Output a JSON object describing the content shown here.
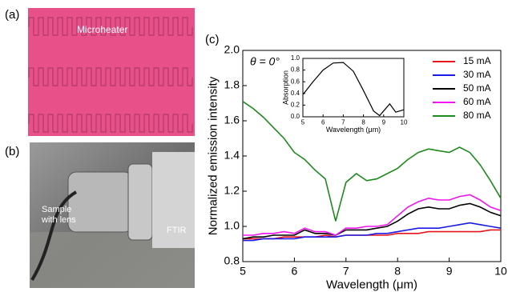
{
  "panels": {
    "a": {
      "label": "(a)",
      "text": "Microheater"
    },
    "b": {
      "label": "(b)",
      "texts": [
        "Sample",
        "with lens",
        "FTIR"
      ]
    },
    "c": {
      "label": "(c)"
    }
  },
  "chart_data": [
    {
      "type": "line",
      "xlabel": "Wavelength (μm)",
      "ylabel": "Normalized emission intensity",
      "annotation": "θ = 0°",
      "x": [
        5,
        5.2,
        5.4,
        5.6,
        5.8,
        6,
        6.2,
        6.4,
        6.6,
        6.8,
        7,
        7.2,
        7.4,
        7.6,
        7.8,
        8,
        8.2,
        8.4,
        8.6,
        8.8,
        9,
        9.2,
        9.4,
        9.6,
        9.8,
        10
      ],
      "series": [
        {
          "name": "15 mA",
          "color": "#e8141c",
          "values": [
            0.93,
            0.93,
            0.93,
            0.93,
            0.94,
            0.94,
            0.94,
            0.94,
            0.95,
            0.94,
            0.95,
            0.95,
            0.95,
            0.95,
            0.95,
            0.96,
            0.96,
            0.96,
            0.97,
            0.97,
            0.97,
            0.97,
            0.97,
            0.97,
            0.98,
            0.98
          ]
        },
        {
          "name": "30 mA",
          "color": "#1a1ae6",
          "values": [
            0.92,
            0.92,
            0.93,
            0.93,
            0.93,
            0.93,
            0.94,
            0.94,
            0.94,
            0.94,
            0.95,
            0.95,
            0.95,
            0.96,
            0.96,
            0.97,
            0.98,
            0.99,
            0.99,
            0.99,
            1.0,
            1.01,
            1.02,
            1.01,
            1.0,
            0.99
          ]
        },
        {
          "name": "50 mA",
          "color": "#000000",
          "values": [
            0.93,
            0.94,
            0.94,
            0.95,
            0.95,
            0.95,
            0.98,
            0.96,
            0.96,
            0.95,
            0.98,
            0.98,
            0.98,
            0.99,
            1.0,
            1.03,
            1.07,
            1.1,
            1.11,
            1.1,
            1.1,
            1.12,
            1.13,
            1.11,
            1.08,
            1.06
          ]
        },
        {
          "name": "60 mA",
          "color": "#f014f0",
          "values": [
            0.95,
            0.95,
            0.96,
            0.96,
            0.97,
            0.96,
            0.99,
            0.97,
            0.97,
            0.95,
            0.99,
            0.99,
            1.0,
            1.0,
            1.01,
            1.06,
            1.11,
            1.14,
            1.16,
            1.15,
            1.15,
            1.17,
            1.18,
            1.15,
            1.11,
            1.09
          ]
        },
        {
          "name": "80 mA",
          "color": "#1e8a1e",
          "values": [
            1.71,
            1.67,
            1.62,
            1.56,
            1.5,
            1.42,
            1.38,
            1.32,
            1.27,
            1.03,
            1.25,
            1.3,
            1.26,
            1.27,
            1.3,
            1.33,
            1.38,
            1.42,
            1.44,
            1.43,
            1.42,
            1.45,
            1.42,
            1.35,
            1.26,
            1.16
          ]
        }
      ],
      "xlim": [
        5,
        10
      ],
      "xticks": [
        5,
        6,
        7,
        8,
        9,
        10
      ],
      "ylim": [
        0.8,
        2.0
      ],
      "yticks": [
        0.8,
        {
          "value": 1,
          "label": "1.0"
        },
        1.2,
        1.4,
        1.6,
        1.8,
        {
          "value": 2,
          "label": "2.0"
        }
      ]
    },
    {
      "type": "line",
      "xlabel": "Wavelength (μm)",
      "ylabel": "Absorption",
      "color": "#000000",
      "x": [
        5,
        5.5,
        6,
        6.5,
        7,
        7.5,
        8,
        8.5,
        8.8,
        9,
        9.3,
        9.6,
        10
      ],
      "values": [
        0.38,
        0.6,
        0.8,
        0.92,
        0.93,
        0.78,
        0.45,
        0.1,
        0.02,
        0.1,
        0.22,
        0.08,
        0.12
      ],
      "xlim": [
        5,
        10
      ],
      "xticks": [
        5,
        6,
        7,
        8,
        9,
        10
      ],
      "ylim": [
        0,
        1
      ],
      "yticks": [
        {
          "value": 0,
          "label": "0.0"
        },
        0.2,
        0.4,
        0.6,
        0.8,
        {
          "value": 1,
          "label": "1.0"
        }
      ]
    }
  ]
}
